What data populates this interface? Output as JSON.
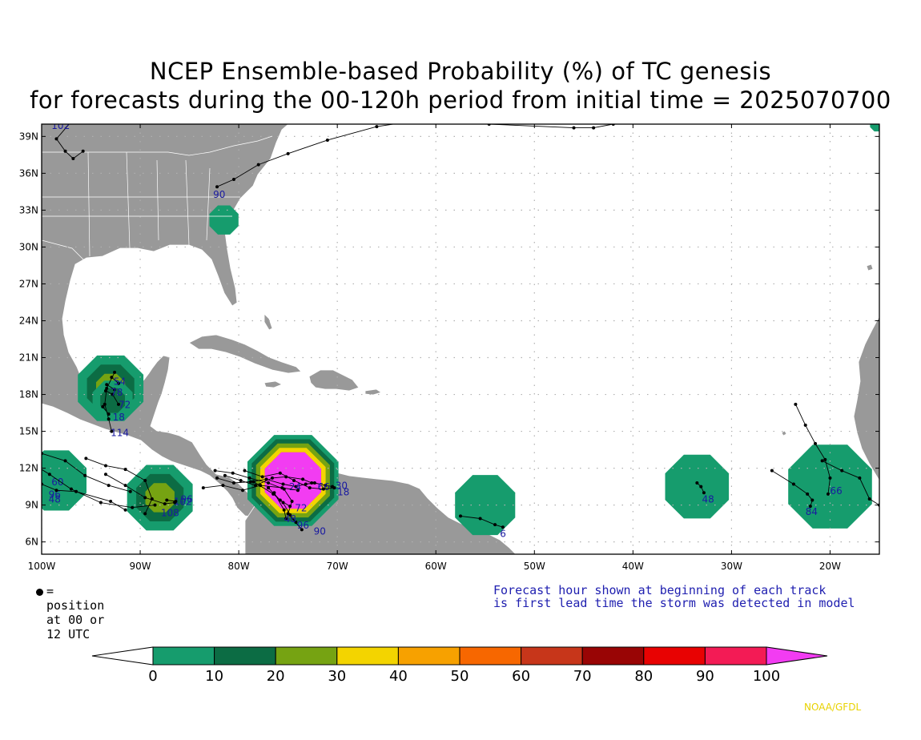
{
  "title": {
    "line1": "NCEP Ensemble-based Probability (%) of TC genesis",
    "line2": "for forecasts during the 00-120h period from initial time = 2025070700"
  },
  "map": {
    "lon_range": [
      -100,
      -15
    ],
    "lat_range": [
      5,
      40
    ],
    "lat_ticks": [
      {
        "lat": 39,
        "label": "39N"
      },
      {
        "lat": 36,
        "label": "36N"
      },
      {
        "lat": 33,
        "label": "33N"
      },
      {
        "lat": 30,
        "label": "30N"
      },
      {
        "lat": 27,
        "label": "27N"
      },
      {
        "lat": 24,
        "label": "24N"
      },
      {
        "lat": 21,
        "label": "21N"
      },
      {
        "lat": 18,
        "label": "18N"
      },
      {
        "lat": 15,
        "label": "15N"
      },
      {
        "lat": 12,
        "label": "12N"
      },
      {
        "lat": 9,
        "label": "9N"
      },
      {
        "lat": 6,
        "label": "6N"
      }
    ],
    "lon_ticks": [
      {
        "lon": -100,
        "label": "100W"
      },
      {
        "lon": -90,
        "label": "90W"
      },
      {
        "lon": -80,
        "label": "80W"
      },
      {
        "lon": -70,
        "label": "70W"
      },
      {
        "lon": -60,
        "label": "60W"
      },
      {
        "lon": -50,
        "label": "50W"
      },
      {
        "lon": -40,
        "label": "40W"
      },
      {
        "lon": -30,
        "label": "30W"
      },
      {
        "lon": -20,
        "label": "20W"
      }
    ],
    "colors": {
      "land": "#999999",
      "ocean": "#ffffff",
      "track": "#000000",
      "label": "#1a1aa0"
    },
    "probability_areas": [
      {
        "lon": -93,
        "lat": 18.5,
        "r": 3.6,
        "max": 30
      },
      {
        "lon": -92.8,
        "lat": 17.5,
        "r": 2.2,
        "max": 20
      },
      {
        "lon": -88,
        "lat": 9.6,
        "r": 3.6,
        "max": 30
      },
      {
        "lon": -98.5,
        "lat": 11.0,
        "r": 3.3,
        "max": 10
      },
      {
        "lon": -74.5,
        "lat": 11.0,
        "r": 5.0,
        "max": 100
      },
      {
        "lon": -55,
        "lat": 9.0,
        "r": 3.3,
        "max": 10
      },
      {
        "lon": -33.5,
        "lat": 10.5,
        "r": 3.5,
        "max": 10
      },
      {
        "lon": -20,
        "lat": 10.5,
        "r": 4.6,
        "max": 10
      },
      {
        "lon": -81.5,
        "lat": 32.2,
        "r": 1.6,
        "max": 10
      },
      {
        "lon": -15.2,
        "lat": 40.0,
        "r": 0.8,
        "max": 10
      }
    ],
    "tracks": [
      {
        "points": [
          [
            -97,
            40.2
          ],
          [
            -98.5,
            38.8
          ],
          [
            -97.6,
            37.8
          ],
          [
            -96.8,
            37.2
          ],
          [
            -95.8,
            37.8
          ]
        ],
        "label": "102",
        "label_at": [
          -99,
          39.6
        ]
      },
      {
        "points": [
          [
            -82.2,
            34.9
          ],
          [
            -80.5,
            35.5
          ],
          [
            -78,
            36.7
          ],
          [
            -75,
            37.6
          ],
          [
            -71,
            38.7
          ],
          [
            -66,
            39.8
          ],
          [
            -63.5,
            40.1
          ]
        ],
        "label": "90",
        "label_at": [
          -82.6,
          34.0
        ]
      },
      {
        "points": [
          [
            -54.6,
            40.0
          ],
          [
            -46,
            39.7
          ],
          [
            -44,
            39.7
          ],
          [
            -42,
            40.0
          ],
          [
            -39.5,
            41.0
          ]
        ],
        "label": "",
        "label_at": [
          0,
          0
        ]
      },
      {
        "points": [
          [
            -92.6,
            19.8
          ],
          [
            -93.4,
            18.5
          ],
          [
            -93.6,
            17.2
          ],
          [
            -93.2,
            16.0
          ],
          [
            -92.9,
            15.0
          ]
        ],
        "label": "114",
        "label_at": [
          -93.0,
          14.6
        ]
      },
      {
        "points": [
          [
            -93.5,
            18.3
          ],
          [
            -92.8,
            18.0
          ],
          [
            -92.2,
            17.2
          ]
        ],
        "label": "72",
        "label_at": [
          -92.2,
          16.9
        ]
      },
      {
        "points": [
          [
            -93.8,
            17.0
          ],
          [
            -93.2,
            16.4
          ]
        ],
        "label": "18",
        "label_at": [
          -92.8,
          15.9
        ]
      },
      {
        "points": [
          [
            -93.4,
            18.8
          ],
          [
            -92.6,
            18.4
          ]
        ],
        "label": "78",
        "label_at": [
          -93.0,
          17.9
        ]
      },
      {
        "points": [
          [
            -92.9,
            19.4
          ],
          [
            -92.2,
            18.9
          ]
        ],
        "label": "54",
        "label_at": [
          -92.7,
          18.8
        ]
      },
      {
        "points": [
          [
            -100,
            13.2
          ],
          [
            -97.6,
            12.6
          ],
          [
            -95.6,
            11.4
          ],
          [
            -93.2,
            10.6
          ],
          [
            -91,
            10.1
          ]
        ],
        "label": "60",
        "label_at": [
          -99.0,
          10.6
        ]
      },
      {
        "points": [
          [
            -101,
            12.4
          ],
          [
            -99.2,
            11.5
          ],
          [
            -97,
            10.3
          ],
          [
            -94,
            9.2
          ],
          [
            -90.8,
            8.8
          ],
          [
            -88.5,
            9.0
          ]
        ],
        "label": "96",
        "label_at": [
          -99.3,
          9.6
        ]
      },
      {
        "points": [
          [
            -100,
            10.7
          ],
          [
            -98.5,
            10.2
          ],
          [
            -96.5,
            10.1
          ],
          [
            -93,
            9.3
          ],
          [
            -91.5,
            8.6
          ]
        ],
        "label": "48",
        "label_at": [
          -99.3,
          9.2
        ]
      },
      {
        "points": [
          [
            -95.5,
            12.8
          ],
          [
            -93.5,
            12.2
          ],
          [
            -91.5,
            11.9
          ],
          [
            -89.5,
            11.0
          ],
          [
            -88.8,
            9.5
          ],
          [
            -89.5,
            8.3
          ]
        ],
        "label": "108",
        "label_at": [
          -87.9,
          8.1
        ]
      },
      {
        "points": [
          [
            -93.5,
            11.5
          ],
          [
            -91.5,
            10.6
          ],
          [
            -89.5,
            9.6
          ],
          [
            -87.5,
            9.1
          ],
          [
            -86.5,
            9.2
          ]
        ],
        "label": "102",
        "label_at": [
          -86.6,
          9.0
        ]
      },
      {
        "points": [
          [
            -87.3,
            9.4
          ],
          [
            -86.4,
            9.3
          ]
        ],
        "label": "96",
        "label_at": [
          -85.9,
          9.2
        ]
      },
      {
        "points": [
          [
            -82.2,
            11.2
          ],
          [
            -80.5,
            10.8
          ],
          [
            -78.8,
            10.9
          ],
          [
            -77.2,
            11.1
          ],
          [
            -75.5,
            10.7
          ],
          [
            -74.2,
            10.5
          ],
          [
            -73.2,
            10.7
          ],
          [
            -72.3,
            10.8
          ],
          [
            -71.2,
            10.6
          ],
          [
            -70.5,
            10.5
          ]
        ],
        "label": "66",
        "label_at": [
          -72.0,
          10.2
        ]
      },
      {
        "points": [
          [
            -81.4,
            11.4
          ],
          [
            -79.8,
            11.0
          ],
          [
            -78.3,
            10.6
          ],
          [
            -76.6,
            11.2
          ],
          [
            -75.2,
            11.3
          ],
          [
            -73.5,
            11.1
          ],
          [
            -72.6,
            10.8
          ]
        ],
        "label": "24",
        "label_at": [
          -74.9,
          10.2
        ]
      },
      {
        "points": [
          [
            -83.6,
            10.4
          ],
          [
            -81.6,
            10.6
          ],
          [
            -79.6,
            10.2
          ],
          [
            -77.8,
            10.6
          ],
          [
            -75.6,
            10.4
          ],
          [
            -74,
            10.2
          ]
        ],
        "label": "30",
        "label_at": [
          -70.2,
          10.3
        ]
      },
      {
        "points": [
          [
            -79.4,
            11.8
          ],
          [
            -77.6,
            11.3
          ],
          [
            -75.8,
            11.6
          ],
          [
            -74.4,
            11.0
          ],
          [
            -72.8,
            10.4
          ],
          [
            -71.4,
            10.3
          ],
          [
            -70.3,
            10.4
          ]
        ],
        "label": "18",
        "label_at": [
          -70.0,
          9.8
        ]
      },
      {
        "points": [
          [
            -82.4,
            11.8
          ],
          [
            -80.6,
            11.6
          ],
          [
            -78.9,
            11.2
          ],
          [
            -77,
            10.8
          ],
          [
            -75.4,
            10.3
          ],
          [
            -74.6,
            9.3
          ],
          [
            -75,
            8.3
          ],
          [
            -73.6,
            7.0
          ]
        ],
        "label": "90",
        "label_at": [
          -72.4,
          6.6
        ]
      },
      {
        "points": [
          [
            -78.5,
            10.9
          ],
          [
            -76.5,
            9.9
          ],
          [
            -75.5,
            9.2
          ],
          [
            -74.8,
            8.2
          ],
          [
            -74.2,
            7.6
          ]
        ],
        "label": "96",
        "label_at": [
          -74.1,
          7.1
        ]
      },
      {
        "points": [
          [
            -77,
            10.4
          ],
          [
            -75.8,
            9.4
          ],
          [
            -74.8,
            8.9
          ]
        ],
        "label": "72",
        "label_at": [
          -74.3,
          8.5
        ]
      },
      {
        "points": [
          [
            -76.4,
            10.0
          ],
          [
            -75.4,
            8.6
          ],
          [
            -75.2,
            7.9
          ]
        ],
        "label": "48",
        "label_at": [
          -75.4,
          7.6
        ]
      },
      {
        "points": [
          [
            -57.5,
            8.1
          ],
          [
            -55.5,
            7.9
          ],
          [
            -54,
            7.4
          ],
          [
            -53.2,
            7.2
          ]
        ],
        "label": "6",
        "label_at": [
          -53.5,
          6.4
        ]
      },
      {
        "points": [
          [
            -33.5,
            10.8
          ],
          [
            -33.1,
            10.5
          ],
          [
            -32.8,
            10.0
          ]
        ],
        "label": "48",
        "label_at": [
          -33.0,
          9.2
        ]
      },
      {
        "points": [
          [
            -23.5,
            17.2
          ],
          [
            -22.5,
            15.5
          ],
          [
            -21.5,
            14.0
          ],
          [
            -20.5,
            12.7
          ],
          [
            -20,
            11.2
          ],
          [
            -20.2,
            9.9
          ]
        ],
        "label": "66",
        "label_at": [
          -20.0,
          9.9
        ]
      },
      {
        "points": [
          [
            -20.8,
            12.6
          ],
          [
            -18.8,
            11.8
          ],
          [
            -17,
            11.2
          ],
          [
            -16,
            9.5
          ],
          [
            -15,
            9.0
          ]
        ],
        "label": "",
        "label_at": [
          0,
          0
        ]
      },
      {
        "points": [
          [
            -25.9,
            11.8
          ],
          [
            -23.7,
            10.7
          ],
          [
            -22.3,
            9.9
          ],
          [
            -21.8,
            9.4
          ],
          [
            -22.0,
            8.9
          ]
        ],
        "label": "84",
        "label_at": [
          -22.5,
          8.2
        ]
      }
    ]
  },
  "notes": {
    "legend_dot": "= position at 00 or 12 UTC",
    "forecast_line1": "Forecast hour shown at beginning of each track",
    "forecast_line2": "is first lead time the storm was detected in model"
  },
  "colorbar": {
    "labels": [
      "0",
      "10",
      "20",
      "30",
      "40",
      "50",
      "60",
      "70",
      "80",
      "90",
      "100"
    ],
    "colors": [
      "#ffffff",
      "#169c6d",
      "#0c6c44",
      "#76a312",
      "#f3d400",
      "#f7a100",
      "#f76700",
      "#c7361a",
      "#990505",
      "#e80202",
      "#f31b55",
      "#f23cf2"
    ]
  },
  "credit": "NOAA/GFDL"
}
